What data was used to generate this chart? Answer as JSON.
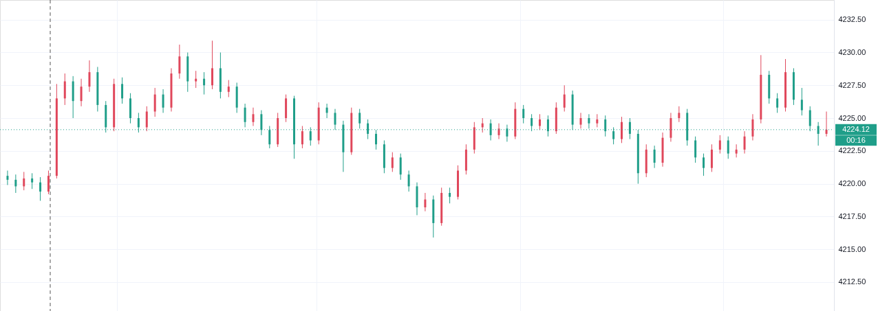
{
  "chart_data": {
    "type": "candlestick",
    "categories": [
      null,
      null,
      null,
      null,
      null,
      null,
      null,
      null,
      null,
      null,
      null,
      null,
      null,
      null,
      null,
      null,
      null,
      null,
      null,
      null,
      null,
      null,
      null,
      null,
      null,
      null,
      null,
      null,
      null,
      null,
      null,
      null,
      null,
      null,
      null,
      null,
      null,
      null,
      null,
      null,
      null,
      null,
      null,
      null,
      null,
      null,
      null,
      null,
      null,
      null,
      null,
      null,
      null,
      null,
      null,
      null,
      null,
      null,
      null,
      null,
      null,
      null,
      null,
      null,
      null,
      null,
      null,
      null,
      null,
      null,
      null,
      null,
      null,
      null,
      null,
      null,
      null,
      null,
      null,
      null,
      null,
      null,
      null,
      null,
      null,
      null,
      null,
      null,
      null,
      null,
      null,
      null,
      null,
      null,
      null,
      null,
      null,
      null,
      null,
      null,
      null
    ],
    "ohlc": [
      [
        4220.6,
        4221.0,
        4219.9,
        4220.3
      ],
      [
        4220.3,
        4220.7,
        4219.3,
        4219.8
      ],
      [
        4219.8,
        4220.9,
        4219.5,
        4220.4
      ],
      [
        4220.4,
        4220.8,
        4219.6,
        4220.1
      ],
      [
        4220.1,
        4220.5,
        4218.7,
        4219.4
      ],
      [
        4219.4,
        4221.0,
        4219.2,
        4220.6
      ],
      [
        4220.6,
        4227.6,
        4220.4,
        4226.5
      ],
      [
        4226.5,
        4228.4,
        4226.0,
        4227.8
      ],
      [
        4227.8,
        4228.2,
        4225.0,
        4226.3
      ],
      [
        4226.3,
        4228.0,
        4225.9,
        4227.4
      ],
      [
        4227.4,
        4229.4,
        4227.0,
        4228.5
      ],
      [
        4228.5,
        4228.9,
        4225.5,
        4226.0
      ],
      [
        4226.0,
        4226.3,
        4223.9,
        4224.3
      ],
      [
        4224.3,
        4228.0,
        4224.0,
        4227.6
      ],
      [
        4227.6,
        4228.1,
        4226.1,
        4226.5
      ],
      [
        4226.5,
        4226.9,
        4224.6,
        4225.0
      ],
      [
        4225.0,
        4225.4,
        4223.9,
        4224.3
      ],
      [
        4224.3,
        4225.9,
        4224.0,
        4225.5
      ],
      [
        4225.5,
        4227.3,
        4225.1,
        4226.8
      ],
      [
        4226.8,
        4227.2,
        4225.4,
        4225.8
      ],
      [
        4225.8,
        4228.8,
        4225.5,
        4228.4
      ],
      [
        4228.4,
        4230.6,
        4228.0,
        4229.7
      ],
      [
        4229.7,
        4230.0,
        4227.0,
        4227.8
      ],
      [
        4227.8,
        4228.6,
        4227.3,
        4228.0
      ],
      [
        4228.0,
        4228.5,
        4226.8,
        4227.5
      ],
      [
        4227.5,
        4230.9,
        4227.2,
        4228.8
      ],
      [
        4228.8,
        4230.0,
        4226.5,
        4227.0
      ],
      [
        4227.0,
        4227.9,
        4226.6,
        4227.4
      ],
      [
        4227.4,
        4227.7,
        4225.4,
        4225.8
      ],
      [
        4225.8,
        4226.1,
        4224.3,
        4224.7
      ],
      [
        4224.7,
        4225.8,
        4224.4,
        4225.3
      ],
      [
        4225.3,
        4225.6,
        4223.7,
        4224.1
      ],
      [
        4224.1,
        4224.4,
        4222.7,
        4223.0
      ],
      [
        4223.0,
        4225.4,
        4222.8,
        4225.0
      ],
      [
        4225.0,
        4226.8,
        4224.7,
        4226.5
      ],
      [
        4226.5,
        4226.7,
        4221.9,
        4223.0
      ],
      [
        4223.0,
        4224.4,
        4222.7,
        4224.0
      ],
      [
        4224.0,
        4224.3,
        4222.9,
        4223.3
      ],
      [
        4223.3,
        4226.2,
        4223.0,
        4225.8
      ],
      [
        4225.8,
        4226.1,
        4225.0,
        4225.4
      ],
      [
        4225.4,
        4225.7,
        4224.1,
        4224.5
      ],
      [
        4224.5,
        4224.8,
        4220.9,
        4222.4
      ],
      [
        4222.4,
        4225.8,
        4222.2,
        4225.4
      ],
      [
        4225.4,
        4225.7,
        4224.2,
        4224.6
      ],
      [
        4224.6,
        4224.9,
        4223.4,
        4223.8
      ],
      [
        4223.8,
        4224.1,
        4222.6,
        4223.0
      ],
      [
        4223.0,
        4223.3,
        4220.8,
        4221.2
      ],
      [
        4221.2,
        4222.4,
        4220.9,
        4222.0
      ],
      [
        4222.0,
        4222.3,
        4220.3,
        4220.7
      ],
      [
        4220.7,
        4221.0,
        4219.4,
        4219.8
      ],
      [
        4219.8,
        4220.1,
        4217.6,
        4218.2
      ],
      [
        4218.2,
        4219.3,
        4217.9,
        4218.8
      ],
      [
        4218.8,
        4219.1,
        4215.9,
        4217.0
      ],
      [
        4217.0,
        4219.7,
        4216.8,
        4219.3
      ],
      [
        4219.3,
        4219.7,
        4218.5,
        4219.0
      ],
      [
        4219.0,
        4221.4,
        4218.8,
        4221.0
      ],
      [
        4221.0,
        4223.0,
        4220.7,
        4222.6
      ],
      [
        4222.6,
        4224.7,
        4222.3,
        4224.3
      ],
      [
        4224.3,
        4225.0,
        4223.9,
        4224.6
      ],
      [
        4224.6,
        4224.9,
        4223.3,
        4223.7
      ],
      [
        4223.7,
        4224.6,
        4223.4,
        4224.2
      ],
      [
        4224.2,
        4224.5,
        4223.2,
        4223.6
      ],
      [
        4223.6,
        4226.2,
        4223.4,
        4225.7
      ],
      [
        4225.7,
        4226.0,
        4224.6,
        4225.0
      ],
      [
        4225.0,
        4225.3,
        4224.0,
        4224.4
      ],
      [
        4224.4,
        4225.3,
        4224.1,
        4224.9
      ],
      [
        4224.9,
        4225.2,
        4223.6,
        4224.0
      ],
      [
        4224.0,
        4226.2,
        4223.8,
        4225.8
      ],
      [
        4225.8,
        4227.5,
        4225.5,
        4226.8
      ],
      [
        4226.8,
        4227.1,
        4224.1,
        4224.5
      ],
      [
        4224.5,
        4225.4,
        4224.2,
        4225.0
      ],
      [
        4225.0,
        4225.3,
        4224.2,
        4224.6
      ],
      [
        4224.6,
        4225.3,
        4224.3,
        4224.9
      ],
      [
        4224.9,
        4225.2,
        4223.6,
        4224.0
      ],
      [
        4224.0,
        4224.3,
        4223.0,
        4223.4
      ],
      [
        4223.4,
        4225.1,
        4223.1,
        4224.7
      ],
      [
        4224.7,
        4225.0,
        4223.4,
        4223.8
      ],
      [
        4223.8,
        4224.1,
        4220.0,
        4220.8
      ],
      [
        4220.8,
        4223.0,
        4220.5,
        4222.6
      ],
      [
        4222.6,
        4222.9,
        4221.2,
        4221.6
      ],
      [
        4221.6,
        4223.9,
        4221.3,
        4223.5
      ],
      [
        4223.5,
        4225.4,
        4223.2,
        4225.0
      ],
      [
        4225.0,
        4225.9,
        4224.7,
        4225.4
      ],
      [
        4225.4,
        4225.7,
        4222.9,
        4223.3
      ],
      [
        4223.3,
        4223.6,
        4221.6,
        4222.0
      ],
      [
        4222.0,
        4222.3,
        4220.6,
        4221.2
      ],
      [
        4221.2,
        4223.0,
        4220.9,
        4222.6
      ],
      [
        4222.6,
        4223.7,
        4222.3,
        4223.3
      ],
      [
        4223.3,
        4223.6,
        4221.9,
        4222.3
      ],
      [
        4222.3,
        4223.0,
        4222.0,
        4222.6
      ],
      [
        4222.6,
        4224.0,
        4222.3,
        4223.6
      ],
      [
        4223.6,
        4225.3,
        4223.3,
        4224.9
      ],
      [
        4224.9,
        4229.8,
        4224.6,
        4228.3
      ],
      [
        4228.3,
        4228.6,
        4226.1,
        4226.5
      ],
      [
        4226.5,
        4226.9,
        4225.4,
        4225.8
      ],
      [
        4225.8,
        4229.5,
        4225.5,
        4228.5
      ],
      [
        4228.5,
        4228.8,
        4226.0,
        4226.4
      ],
      [
        4226.4,
        4227.3,
        4225.2,
        4225.6
      ],
      [
        4225.6,
        4225.9,
        4224.0,
        4224.4
      ],
      [
        4224.4,
        4224.7,
        4222.9,
        4223.8
      ],
      [
        4223.8,
        4225.5,
        4223.6,
        4224.12
      ]
    ],
    "colors": [
      "#1f9e89",
      "#1f9e89",
      "#e0475b",
      "#1f9e89",
      "#1f9e89",
      "#e0475b",
      "#e0475b",
      "#e0475b",
      "#1f9e89",
      "#e0475b",
      "#e0475b",
      "#1f9e89",
      "#1f9e89",
      "#e0475b",
      "#1f9e89",
      "#1f9e89",
      "#1f9e89",
      "#e0475b",
      "#e0475b",
      "#1f9e89",
      "#e0475b",
      "#e0475b",
      "#1f9e89",
      "#e0475b",
      "#1f9e89",
      "#e0475b",
      "#1f9e89",
      "#e0475b",
      "#1f9e89",
      "#1f9e89",
      "#e0475b",
      "#1f9e89",
      "#1f9e89",
      "#e0475b",
      "#e0475b",
      "#1f9e89",
      "#e0475b",
      "#1f9e89",
      "#e0475b",
      "#1f9e89",
      "#1f9e89",
      "#1f9e89",
      "#e0475b",
      "#1f9e89",
      "#1f9e89",
      "#1f9e89",
      "#1f9e89",
      "#e0475b",
      "#1f9e89",
      "#1f9e89",
      "#1f9e89",
      "#e0475b",
      "#1f9e89",
      "#e0475b",
      "#1f9e89",
      "#e0475b",
      "#e0475b",
      "#e0475b",
      "#e0475b",
      "#1f9e89",
      "#e0475b",
      "#1f9e89",
      "#e0475b",
      "#1f9e89",
      "#1f9e89",
      "#e0475b",
      "#1f9e89",
      "#e0475b",
      "#e0475b",
      "#1f9e89",
      "#e0475b",
      "#1f9e89",
      "#e0475b",
      "#1f9e89",
      "#1f9e89",
      "#e0475b",
      "#1f9e89",
      "#1f9e89",
      "#e0475b",
      "#1f9e89",
      "#e0475b",
      "#e0475b",
      "#e0475b",
      "#1f9e89",
      "#1f9e89",
      "#1f9e89",
      "#e0475b",
      "#e0475b",
      "#1f9e89",
      "#e0475b",
      "#e0475b",
      "#e0475b",
      "#e0475b",
      "#1f9e89",
      "#1f9e89",
      "#e0475b",
      "#1f9e89",
      "#1f9e89",
      "#1f9e89",
      "#1f9e89",
      "#e0475b"
    ],
    "ylim": [
      4210.3,
      4234.0
    ],
    "yticks": [
      {
        "value": 4212.5,
        "label": "4212.50"
      },
      {
        "value": 4215,
        "label": "4215.00"
      },
      {
        "value": 4217.5,
        "label": "4217.50"
      },
      {
        "value": 4220,
        "label": "4220.00"
      },
      {
        "value": 4222.5,
        "label": "4222.50"
      },
      {
        "value": 4225,
        "label": "4225.00"
      },
      {
        "value": 4227.5,
        "label": "4227.50"
      },
      {
        "value": 4230,
        "label": "4230.00"
      },
      {
        "value": 4232.5,
        "label": "4232.50"
      }
    ],
    "grid": true,
    "tick_labels": "y",
    "ref_lines": [
      {
        "axis": "y",
        "value": 4224.12,
        "label": "4224.12",
        "color": "#1f9e89",
        "line_style": "dotted"
      }
    ],
    "annotations": [
      "00:16"
    ]
  }
}
